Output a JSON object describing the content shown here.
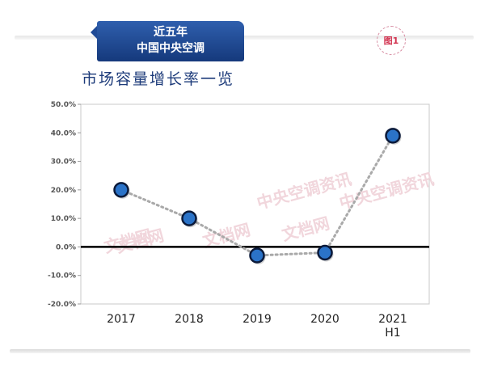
{
  "header": {
    "badge_line1": "近五年",
    "badge_line2": "中国中央空调",
    "figure_tag": "图1",
    "title": "市场容量增长率一览"
  },
  "watermarks": [
    "中央空调资讯",
    "中央空调资讯",
    "中央空调资讯",
    "文档网",
    "文档网",
    "文档网"
  ],
  "colors": {
    "badge": "#1f4a96",
    "title": "#1d3b7a",
    "marker_fill": "#2b73c8",
    "marker_stroke": "#0b1a3a",
    "line": "#a9a9a9",
    "zero_line": "#000000",
    "figure_tag": "#d2324f"
  },
  "chart_data": {
    "type": "line",
    "title": "市场容量增长率一览",
    "categories": [
      "2017",
      "2018",
      "2019",
      "2020",
      "2021\nH1"
    ],
    "series": [
      {
        "values": [
          20.0,
          10.0,
          -3.0,
          -2.0,
          39.0
        ]
      }
    ],
    "ylim": [
      -20,
      50
    ],
    "yticks": [
      "50.0%",
      "40.0%",
      "30.0%",
      "20.0%",
      "10.0%",
      "0.0%",
      "-10.0%",
      "-20.0%"
    ],
    "ytick_values": [
      50,
      40,
      30,
      20,
      10,
      0,
      -10,
      -20
    ],
    "line_style": "dotted",
    "grid": false
  }
}
